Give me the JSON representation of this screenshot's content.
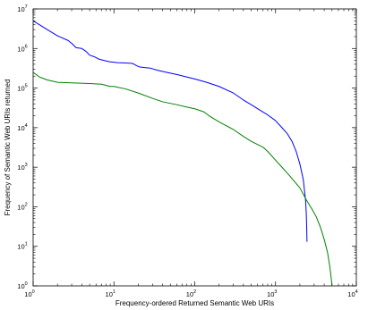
{
  "chart_data": {
    "type": "line",
    "title": "",
    "xlabel": "Frequency-ordered Returned Semantic Web URIs",
    "ylabel": "Frequency of Semantic Web URIs returned",
    "xscale": "log",
    "yscale": "log",
    "xlim": [
      1,
      10000
    ],
    "ylim": [
      1,
      10000000
    ],
    "grid": false,
    "legend": "none",
    "x_ticks": [
      {
        "base": "10",
        "exp": "0",
        "value": 1
      },
      {
        "base": "10",
        "exp": "1",
        "value": 10
      },
      {
        "base": "10",
        "exp": "2",
        "value": 100
      },
      {
        "base": "10",
        "exp": "3",
        "value": 1000
      },
      {
        "base": "10",
        "exp": "4",
        "value": 10000
      }
    ],
    "y_ticks": [
      {
        "base": "10",
        "exp": "0",
        "value": 1
      },
      {
        "base": "10",
        "exp": "1",
        "value": 10
      },
      {
        "base": "10",
        "exp": "2",
        "value": 100
      },
      {
        "base": "10",
        "exp": "3",
        "value": 1000
      },
      {
        "base": "10",
        "exp": "4",
        "value": 10000
      },
      {
        "base": "10",
        "exp": "5",
        "value": 100000
      },
      {
        "base": "10",
        "exp": "6",
        "value": 1000000
      },
      {
        "base": "10",
        "exp": "7",
        "value": 10000000
      }
    ],
    "series": [
      {
        "color": "#0000ff",
        "points": [
          [
            1,
            5000000
          ],
          [
            1.5,
            3000000
          ],
          [
            2,
            2100000
          ],
          [
            2.7,
            1600000
          ],
          [
            3,
            1350000
          ],
          [
            3.4,
            1050000
          ],
          [
            4,
            1000000
          ],
          [
            4.5,
            850000
          ],
          [
            5,
            680000
          ],
          [
            5.7,
            620000
          ],
          [
            6.5,
            540000
          ],
          [
            7.5,
            500000
          ],
          [
            9,
            460000
          ],
          [
            11,
            440000
          ],
          [
            14,
            430000
          ],
          [
            17,
            420000
          ],
          [
            19,
            370000
          ],
          [
            21,
            340000
          ],
          [
            24,
            330000
          ],
          [
            28,
            320000
          ],
          [
            35,
            280000
          ],
          [
            45,
            250000
          ],
          [
            60,
            220000
          ],
          [
            80,
            190000
          ],
          [
            100,
            170000
          ],
          [
            140,
            140000
          ],
          [
            200,
            110000
          ],
          [
            300,
            75000
          ],
          [
            400,
            50000
          ],
          [
            500,
            38000
          ],
          [
            600,
            30000
          ],
          [
            800,
            21000
          ],
          [
            1000,
            15000
          ],
          [
            1200,
            10000
          ],
          [
            1400,
            7000
          ],
          [
            1600,
            4500
          ],
          [
            1800,
            2500
          ],
          [
            2000,
            1200
          ],
          [
            2200,
            500
          ],
          [
            2350,
            150
          ],
          [
            2400,
            70
          ],
          [
            2430,
            30
          ],
          [
            2450,
            13
          ]
        ]
      },
      {
        "color": "#008000",
        "points": [
          [
            1,
            250000
          ],
          [
            1.2,
            190000
          ],
          [
            1.5,
            160000
          ],
          [
            2,
            140000
          ],
          [
            3,
            135000
          ],
          [
            5,
            130000
          ],
          [
            7,
            125000
          ],
          [
            9,
            110000
          ],
          [
            10,
            110000
          ],
          [
            14,
            95000
          ],
          [
            20,
            75000
          ],
          [
            30,
            55000
          ],
          [
            40,
            45000
          ],
          [
            60,
            38000
          ],
          [
            80,
            33000
          ],
          [
            100,
            30000
          ],
          [
            130,
            25000
          ],
          [
            150,
            20000
          ],
          [
            200,
            14000
          ],
          [
            300,
            9000
          ],
          [
            400,
            6000
          ],
          [
            500,
            4500
          ],
          [
            700,
            3200
          ],
          [
            800,
            2500
          ],
          [
            1000,
            1500
          ],
          [
            1200,
            1000
          ],
          [
            1500,
            600
          ],
          [
            2000,
            300
          ],
          [
            2400,
            150
          ],
          [
            2800,
            90
          ],
          [
            3200,
            55
          ],
          [
            3600,
            30
          ],
          [
            4000,
            15
          ],
          [
            4400,
            7
          ],
          [
            4700,
            3
          ],
          [
            4900,
            1.5
          ],
          [
            5000,
            1
          ]
        ]
      }
    ]
  }
}
